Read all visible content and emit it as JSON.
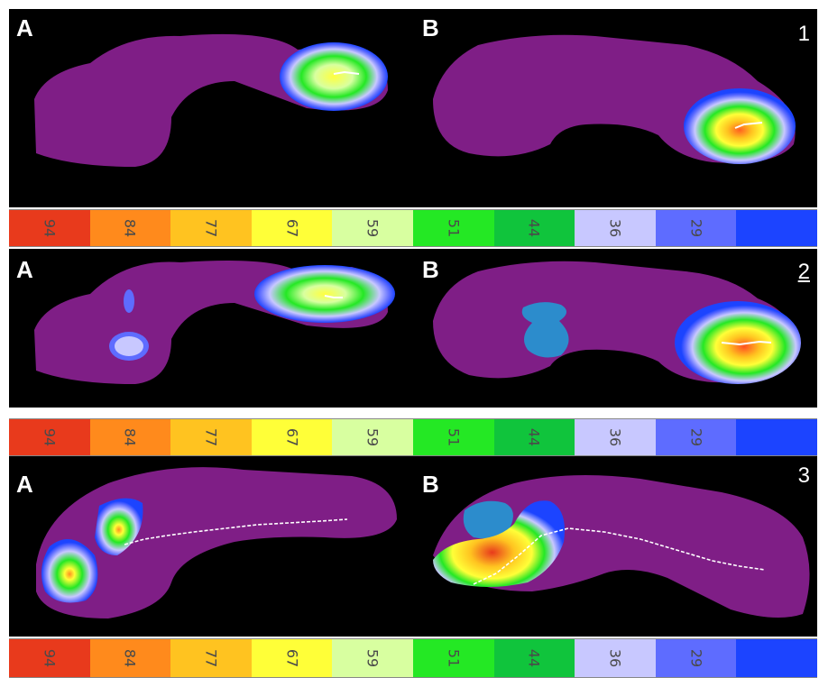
{
  "panels": [
    {
      "number": "1",
      "left_label": "A",
      "right_label": "B"
    },
    {
      "number": "2",
      "left_label": "A",
      "right_label": "B"
    },
    {
      "number": "3",
      "left_label": "A",
      "right_label": "B"
    }
  ],
  "colorbar": {
    "ticks": [
      "94",
      "84",
      "77",
      "67",
      "59",
      "51",
      "44",
      "36",
      "29",
      ""
    ],
    "colors": [
      "#e83a1c",
      "#ff8a1c",
      "#ffc320",
      "#ffff38",
      "#d8ffa0",
      "#24e824",
      "#10c43c",
      "#c8c8ff",
      "#5e6cff",
      "#1c44ff"
    ]
  },
  "colors": {
    "foot": "#7f1e86",
    "background": "#000000"
  },
  "icons": [
    "trajectory-line"
  ]
}
